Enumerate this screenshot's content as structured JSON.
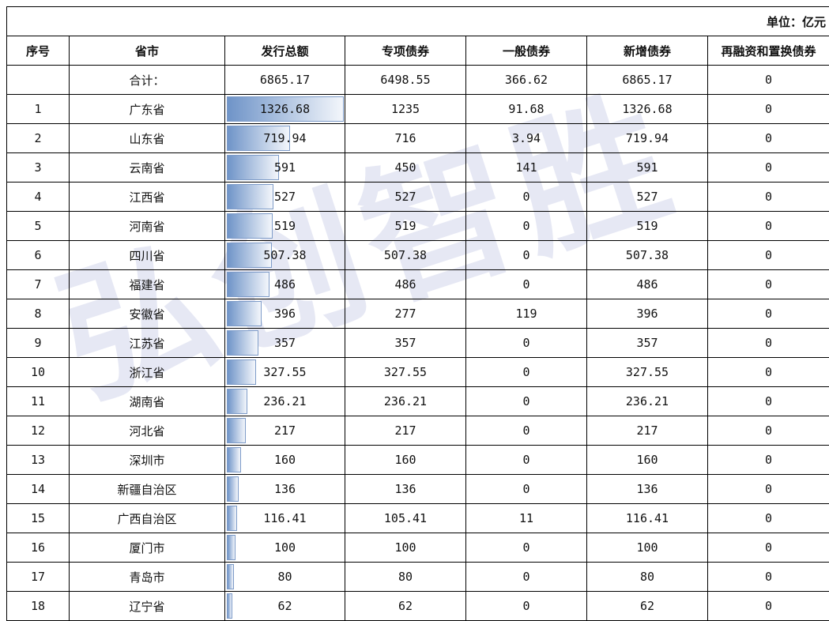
{
  "unit_label": "单位：亿元",
  "headers": [
    "序号",
    "省市",
    "发行总额",
    "专项债券",
    "一般债券",
    "新增债券",
    "再融资和置换债券"
  ],
  "total": {
    "label": "合计：",
    "total": "6865.17",
    "special": "6498.55",
    "general": "366.62",
    "new": "6865.17",
    "refi": "0"
  },
  "rows": [
    {
      "no": "1",
      "region": "广东省",
      "total": "1326.68",
      "special": "1235",
      "general": "91.68",
      "new": "1326.68",
      "refi": "0"
    },
    {
      "no": "2",
      "region": "山东省",
      "total": "719.94",
      "special": "716",
      "general": "3.94",
      "new": "719.94",
      "refi": "0"
    },
    {
      "no": "3",
      "region": "云南省",
      "total": "591",
      "special": "450",
      "general": "141",
      "new": "591",
      "refi": "0"
    },
    {
      "no": "4",
      "region": "江西省",
      "total": "527",
      "special": "527",
      "general": "0",
      "new": "527",
      "refi": "0"
    },
    {
      "no": "5",
      "region": "河南省",
      "total": "519",
      "special": "519",
      "general": "0",
      "new": "519",
      "refi": "0"
    },
    {
      "no": "6",
      "region": "四川省",
      "total": "507.38",
      "special": "507.38",
      "general": "0",
      "new": "507.38",
      "refi": "0"
    },
    {
      "no": "7",
      "region": "福建省",
      "total": "486",
      "special": "486",
      "general": "0",
      "new": "486",
      "refi": "0"
    },
    {
      "no": "8",
      "region": "安徽省",
      "total": "396",
      "special": "277",
      "general": "119",
      "new": "396",
      "refi": "0"
    },
    {
      "no": "9",
      "region": "江苏省",
      "total": "357",
      "special": "357",
      "general": "0",
      "new": "357",
      "refi": "0"
    },
    {
      "no": "10",
      "region": "浙江省",
      "total": "327.55",
      "special": "327.55",
      "general": "0",
      "new": "327.55",
      "refi": "0"
    },
    {
      "no": "11",
      "region": "湖南省",
      "total": "236.21",
      "special": "236.21",
      "general": "0",
      "new": "236.21",
      "refi": "0"
    },
    {
      "no": "12",
      "region": "河北省",
      "total": "217",
      "special": "217",
      "general": "0",
      "new": "217",
      "refi": "0"
    },
    {
      "no": "13",
      "region": "深圳市",
      "total": "160",
      "special": "160",
      "general": "0",
      "new": "160",
      "refi": "0"
    },
    {
      "no": "14",
      "region": "新疆自治区",
      "total": "136",
      "special": "136",
      "general": "0",
      "new": "136",
      "refi": "0"
    },
    {
      "no": "15",
      "region": "广西自治区",
      "total": "116.41",
      "special": "105.41",
      "general": "11",
      "new": "116.41",
      "refi": "0"
    },
    {
      "no": "16",
      "region": "厦门市",
      "total": "100",
      "special": "100",
      "general": "0",
      "new": "100",
      "refi": "0"
    },
    {
      "no": "17",
      "region": "青岛市",
      "total": "80",
      "special": "80",
      "general": "0",
      "new": "80",
      "refi": "0"
    },
    {
      "no": "18",
      "region": "辽宁省",
      "total": "62",
      "special": "62",
      "general": "0",
      "new": "62",
      "refi": "0"
    }
  ],
  "watermark": "弘创智胜",
  "colors": {
    "bar_start": "#6f94c8",
    "bar_end": "#f3f6fb"
  }
}
